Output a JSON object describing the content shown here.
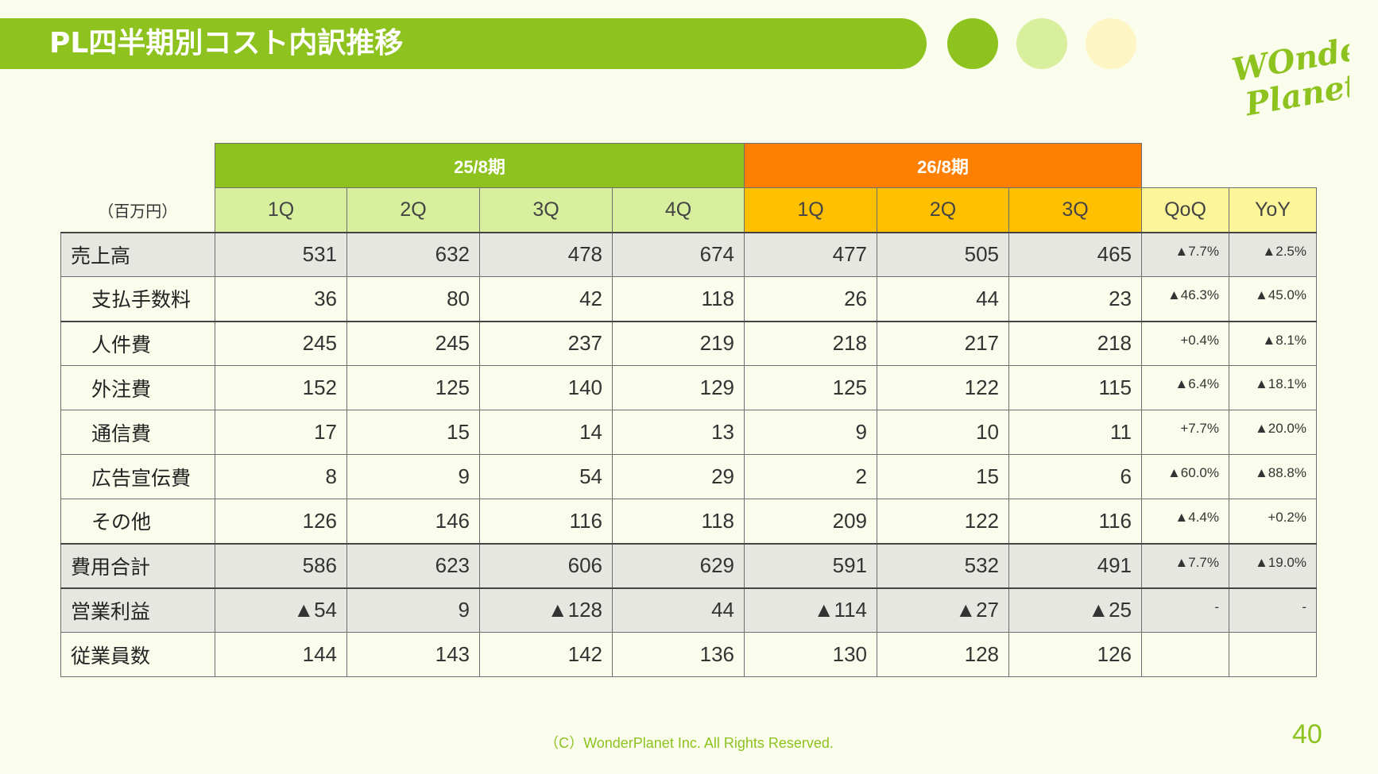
{
  "header": {
    "title": "PL四半期別コスト内訳推移"
  },
  "logo": {
    "line1": "WOnder",
    "line2": "Planet"
  },
  "table": {
    "unit": "（百万円）",
    "periods": [
      {
        "label": "25/8期",
        "quarters": [
          "1Q",
          "2Q",
          "3Q",
          "4Q"
        ]
      },
      {
        "label": "26/8期",
        "quarters": [
          "1Q",
          "2Q",
          "3Q"
        ]
      }
    ],
    "change_headers": [
      "QoQ",
      "YoY"
    ],
    "rows": [
      {
        "label": "売上高",
        "values": [
          "531",
          "632",
          "478",
          "674",
          "477",
          "505",
          "465"
        ],
        "qoq": "▲7.7%",
        "yoy": "▲2.5%"
      },
      {
        "label": "支払手数料",
        "values": [
          "36",
          "80",
          "42",
          "118",
          "26",
          "44",
          "23"
        ],
        "qoq": "▲46.3%",
        "yoy": "▲45.0%"
      },
      {
        "label": "人件費",
        "values": [
          "245",
          "245",
          "237",
          "219",
          "218",
          "217",
          "218"
        ],
        "qoq": "+0.4%",
        "yoy": "▲8.1%"
      },
      {
        "label": "外注費",
        "values": [
          "152",
          "125",
          "140",
          "129",
          "125",
          "122",
          "115"
        ],
        "qoq": "▲6.4%",
        "yoy": "▲18.1%"
      },
      {
        "label": "通信費",
        "values": [
          "17",
          "15",
          "14",
          "13",
          "9",
          "10",
          "11"
        ],
        "qoq": "+7.7%",
        "yoy": "▲20.0%"
      },
      {
        "label": "広告宣伝費",
        "values": [
          "8",
          "9",
          "54",
          "29",
          "2",
          "15",
          "6"
        ],
        "qoq": "▲60.0%",
        "yoy": "▲88.8%"
      },
      {
        "label": "その他",
        "values": [
          "126",
          "146",
          "116",
          "118",
          "209",
          "122",
          "116"
        ],
        "qoq": "▲4.4%",
        "yoy": "+0.2%"
      },
      {
        "label": "費用合計",
        "values": [
          "586",
          "623",
          "606",
          "629",
          "591",
          "532",
          "491"
        ],
        "qoq": "▲7.7%",
        "yoy": "▲19.0%"
      },
      {
        "label": "営業利益",
        "values": [
          "▲54",
          "9",
          "▲128",
          "44",
          "▲114",
          "▲27",
          "▲25"
        ],
        "qoq": "-",
        "yoy": "-"
      },
      {
        "label": "従業員数",
        "values": [
          "144",
          "143",
          "142",
          "136",
          "130",
          "128",
          "126"
        ],
        "qoq": "",
        "yoy": ""
      }
    ]
  },
  "footer": {
    "copyright": "（C）WonderPlanet Inc.  All Rights Reserved.",
    "page_number": "40"
  }
}
